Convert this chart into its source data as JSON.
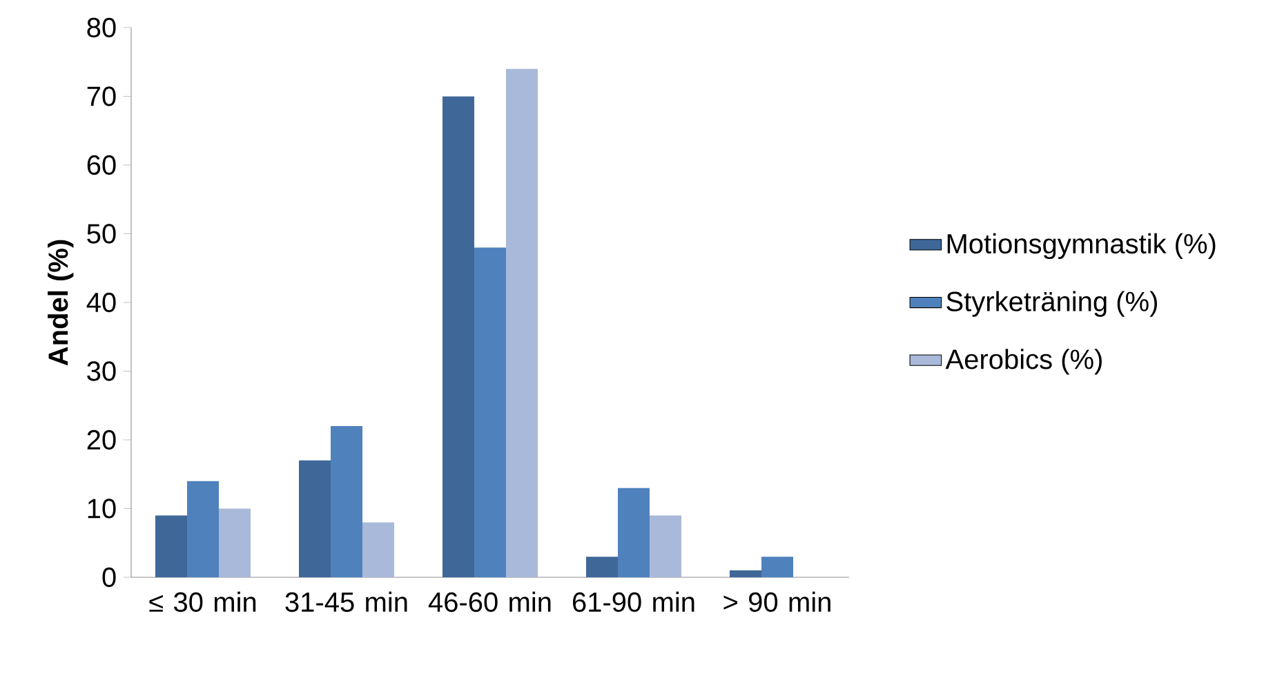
{
  "chart_data": {
    "type": "bar",
    "ylabel": "Andel (%)",
    "categories": [
      "≤ 30 min",
      "31-45 min",
      "46-60 min",
      "61-90 min",
      "> 90 min"
    ],
    "series": [
      {
        "name": "Motionsgymnastik (%)",
        "color": "#3f6899",
        "values": [
          9,
          17,
          70,
          3,
          1
        ]
      },
      {
        "name": "Styrketräning (%)",
        "color": "#4f81bd",
        "values": [
          14,
          22,
          48,
          13,
          3
        ]
      },
      {
        "name": "Aerobics (%)",
        "color": "#a9b9d9",
        "values": [
          10,
          8,
          74,
          9,
          0
        ]
      }
    ],
    "ylim": [
      0,
      80
    ],
    "yticks": [
      0,
      10,
      20,
      30,
      40,
      50,
      60,
      70,
      80
    ],
    "legend": "right"
  }
}
